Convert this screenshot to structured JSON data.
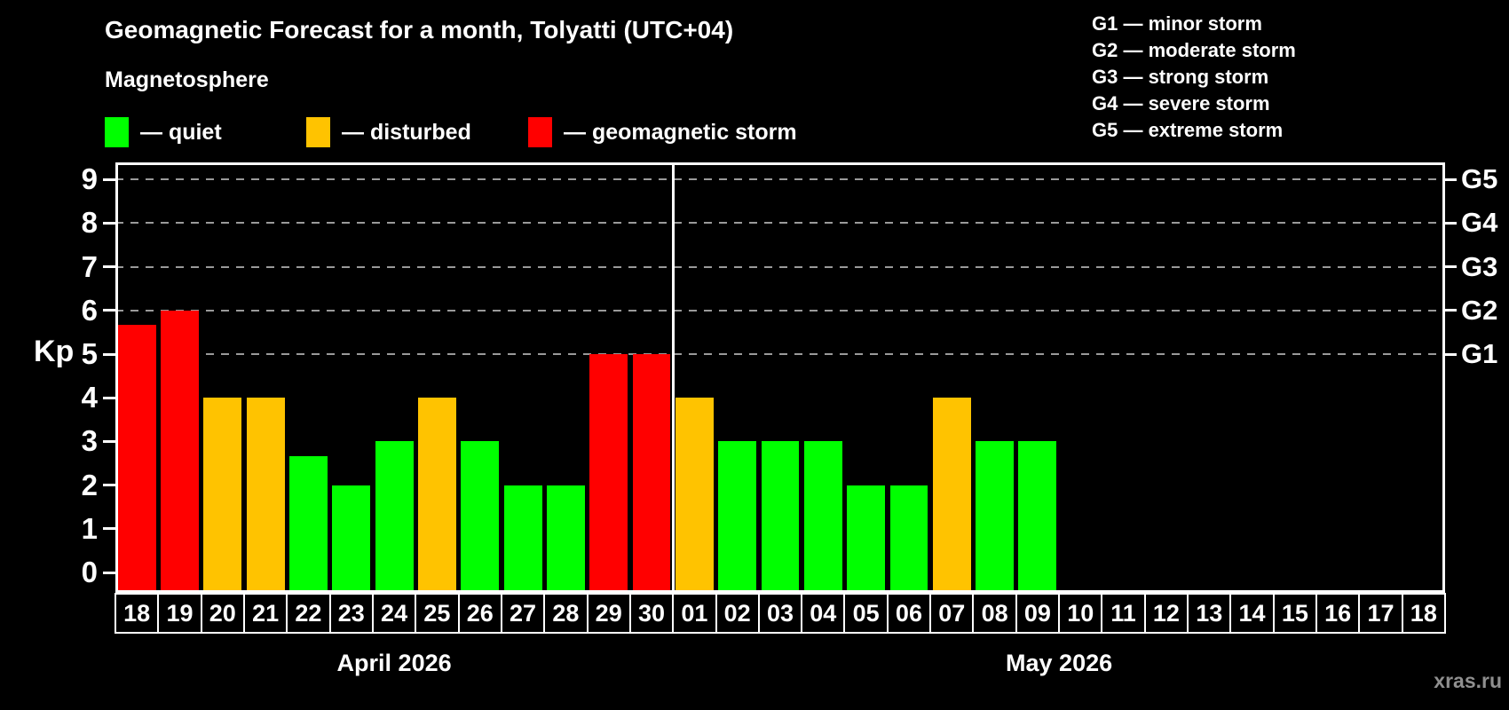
{
  "title": "Geomagnetic Forecast for a month, Tolyatti (UTC+04)",
  "subtitle": "Magnetosphere",
  "legend": {
    "quiet": "— quiet",
    "disturbed": "— disturbed",
    "storm": "— geomagnetic storm"
  },
  "g_legend": [
    "G1 — minor storm",
    "G2 — moderate storm",
    "G3 — strong storm",
    "G4 — severe storm",
    "G5 — extreme storm"
  ],
  "colors": {
    "quiet": "#00ff00",
    "disturbed": "#ffc300",
    "storm": "#ff0000",
    "grid": "#9a9a9a",
    "frame": "#ffffff",
    "watermark": "#8f8f8f"
  },
  "watermark": "xras.ru",
  "chart_data": {
    "type": "bar",
    "title": "Geomagnetic Forecast for a month, Tolyatti (UTC+04)",
    "ylabel": "Kp",
    "ylim": [
      0,
      9
    ],
    "yticks": [
      0,
      1,
      2,
      3,
      4,
      5,
      6,
      7,
      8,
      9
    ],
    "grid_levels": [
      5,
      6,
      7,
      8,
      9
    ],
    "grid": "dashed, only at Kp 5-9",
    "right_axis": [
      {
        "label": "G1",
        "kp": 5
      },
      {
        "label": "G2",
        "kp": 6
      },
      {
        "label": "G3",
        "kp": 7
      },
      {
        "label": "G4",
        "kp": 8
      },
      {
        "label": "G5",
        "kp": 9
      }
    ],
    "groups": [
      {
        "label": "April 2026",
        "days": [
          {
            "d": "18",
            "kp": 5.67,
            "level": "storm"
          },
          {
            "d": "19",
            "kp": 6,
            "level": "storm"
          },
          {
            "d": "20",
            "kp": 4,
            "level": "disturbed"
          },
          {
            "d": "21",
            "kp": 4,
            "level": "disturbed"
          },
          {
            "d": "22",
            "kp": 2.67,
            "level": "quiet"
          },
          {
            "d": "23",
            "kp": 2,
            "level": "quiet"
          },
          {
            "d": "24",
            "kp": 3,
            "level": "quiet"
          },
          {
            "d": "25",
            "kp": 4,
            "level": "disturbed"
          },
          {
            "d": "26",
            "kp": 3,
            "level": "quiet"
          },
          {
            "d": "27",
            "kp": 2,
            "level": "quiet"
          },
          {
            "d": "28",
            "kp": 2,
            "level": "quiet"
          },
          {
            "d": "29",
            "kp": 5,
            "level": "storm"
          },
          {
            "d": "30",
            "kp": 5,
            "level": "storm"
          }
        ]
      },
      {
        "label": "May 2026",
        "days": [
          {
            "d": "01",
            "kp": 4,
            "level": "disturbed"
          },
          {
            "d": "02",
            "kp": 3,
            "level": "quiet"
          },
          {
            "d": "03",
            "kp": 3,
            "level": "quiet"
          },
          {
            "d": "04",
            "kp": 3,
            "level": "quiet"
          },
          {
            "d": "05",
            "kp": 2,
            "level": "quiet"
          },
          {
            "d": "06",
            "kp": 2,
            "level": "quiet"
          },
          {
            "d": "07",
            "kp": 4,
            "level": "disturbed"
          },
          {
            "d": "08",
            "kp": 3,
            "level": "quiet"
          },
          {
            "d": "09",
            "kp": 3,
            "level": "quiet"
          },
          {
            "d": "10",
            "kp": null,
            "level": null
          },
          {
            "d": "11",
            "kp": null,
            "level": null
          },
          {
            "d": "12",
            "kp": null,
            "level": null
          },
          {
            "d": "13",
            "kp": null,
            "level": null
          },
          {
            "d": "14",
            "kp": null,
            "level": null
          },
          {
            "d": "15",
            "kp": null,
            "level": null
          },
          {
            "d": "16",
            "kp": null,
            "level": null
          },
          {
            "d": "17",
            "kp": null,
            "level": null
          },
          {
            "d": "18",
            "kp": null,
            "level": null
          }
        ]
      }
    ]
  }
}
